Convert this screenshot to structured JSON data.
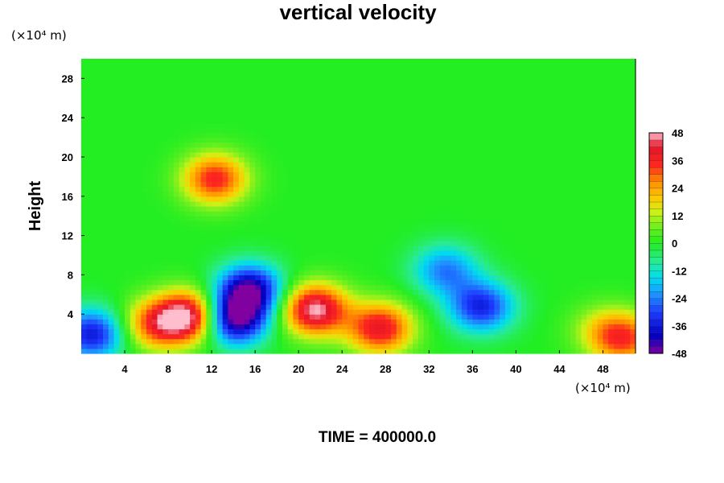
{
  "chart_data": {
    "type": "heatmap",
    "title": "vertical velocity",
    "ylabel": "Height",
    "xlabel": "",
    "x_unit": "(×10⁴ m)",
    "y_unit": "(×10⁴ m)",
    "xlim": [
      0,
      51
    ],
    "ylim": [
      0,
      30
    ],
    "x_ticks": [
      4,
      8,
      12,
      16,
      20,
      24,
      28,
      32,
      36,
      40,
      44,
      48
    ],
    "x_tick_labels": [
      "4",
      "8",
      "12",
      "16",
      "20",
      "24",
      "28",
      "32",
      "36",
      "40",
      "44",
      "48"
    ],
    "y_ticks": [
      4,
      8,
      12,
      16,
      20,
      24,
      28
    ],
    "y_tick_labels": [
      "4",
      "8",
      "12",
      "16",
      "20",
      "24",
      "28"
    ],
    "colorbar": {
      "min": -48,
      "max": 48,
      "ticks": [
        48,
        36,
        24,
        12,
        0,
        -12,
        -24,
        -36,
        -48
      ],
      "tick_labels": [
        "48",
        "36",
        "24",
        "12",
        "0",
        "-12",
        "-24",
        "-36",
        "-48"
      ]
    },
    "background_value": 0,
    "features": [
      {
        "x": 21.5,
        "y": 4.5,
        "value": 48
      },
      {
        "x": 10.0,
        "y": 3.8,
        "value": 48
      },
      {
        "x": 27.5,
        "y": 2.6,
        "value": 40
      },
      {
        "x": 6.8,
        "y": 3.0,
        "value": 30
      },
      {
        "x": 12.3,
        "y": 17.8,
        "value": 36
      },
      {
        "x": 14.0,
        "y": 3.5,
        "value": -48
      },
      {
        "x": 15.5,
        "y": 6.5,
        "value": -44
      },
      {
        "x": 36.8,
        "y": 4.8,
        "value": -34
      },
      {
        "x": 1.0,
        "y": 2.0,
        "value": -36
      },
      {
        "x": 33.5,
        "y": 8.5,
        "value": -24
      },
      {
        "x": 50.0,
        "y": 1.5,
        "value": 30
      },
      {
        "x": 48.0,
        "y": 2.5,
        "value": 12
      }
    ]
  },
  "footer": {
    "time_label": "TIME = 400000.0"
  }
}
